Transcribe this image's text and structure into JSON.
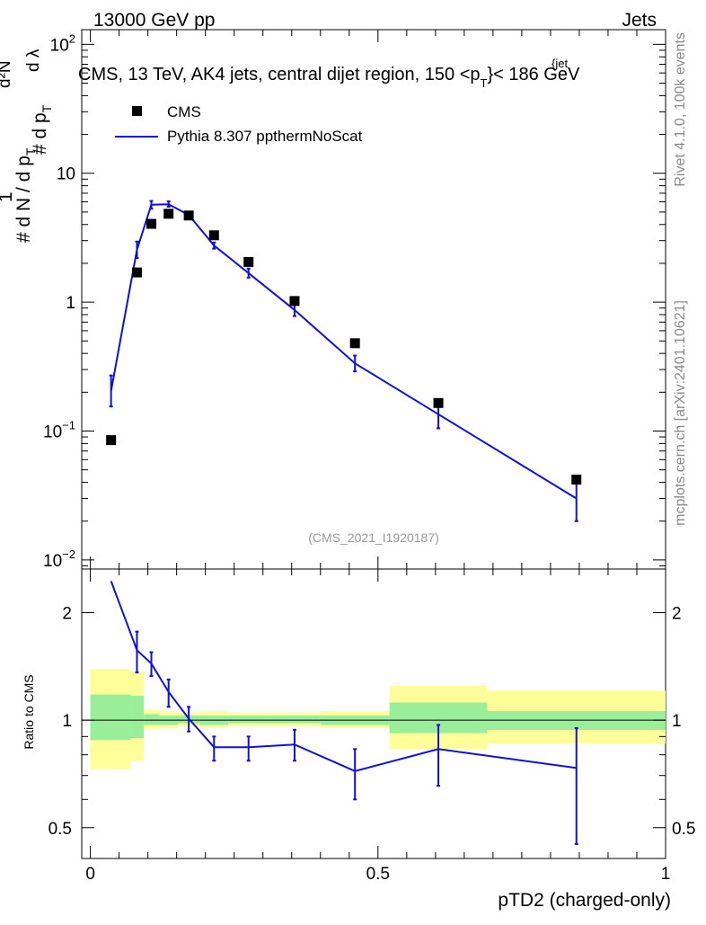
{
  "header": {
    "left": "13000 GeV pp",
    "right": "Jets"
  },
  "colors": {
    "data": "#000000",
    "mc": "#1010dd",
    "band_outer": "#ffff99",
    "band_inner": "#99ee99",
    "side_text": "#8a8a8a"
  },
  "side_labels": {
    "rivet": "Rivet 4.1.0,  100k events",
    "mcplots": "mcplots.cern.ch [arXiv:2401.10621]"
  },
  "chart_data": [
    {
      "type": "scatter",
      "title": "CMS, 13 TeV, AK4 jets, central dijet region, 150 <p",
      "title_sub": "T",
      "title_sup": "{jet",
      "title_tail": "}< 186 GeV",
      "analysis_id": "(CMS_2021_I1920187)",
      "ylabel_num": "1",
      "ylabel_mid": "# d N / d p",
      "ylabel_sub": "T",
      "ylabel_right": "# d p",
      "ylabel_right_sub": "T",
      "ylabel_top": "d²N",
      "ylabel_top2": "d λ",
      "yscale": "log",
      "ylim": [
        0.0085,
        130
      ],
      "xlim": [
        -0.015,
        1.0
      ],
      "yticks": [
        {
          "value": 0.01,
          "base": "10",
          "exp": "−2"
        },
        {
          "value": 0.1,
          "base": "10",
          "exp": "−1"
        },
        {
          "value": 1,
          "label": "1"
        },
        {
          "value": 10,
          "label": "10"
        },
        {
          "value": 100,
          "base": "10",
          "exp": "2"
        }
      ],
      "legend": [
        {
          "name": "CMS",
          "marker": "square"
        },
        {
          "name": "Pythia 8.307 ppthermNoScat",
          "marker": "line"
        }
      ],
      "series": [
        {
          "name": "CMS",
          "x": [
            0.036,
            0.081,
            0.106,
            0.136,
            0.171,
            0.215,
            0.275,
            0.355,
            0.46,
            0.605,
            0.845
          ],
          "y": [
            0.085,
            1.7,
            4.05,
            4.85,
            4.7,
            3.3,
            2.05,
            1.02,
            0.48,
            0.165,
            0.042
          ]
        },
        {
          "name": "Pythia 8.307 ppthermNoScat",
          "x": [
            0.036,
            0.081,
            0.106,
            0.136,
            0.171,
            0.215,
            0.275,
            0.355,
            0.46,
            0.605,
            0.845
          ],
          "y": [
            0.205,
            2.55,
            5.7,
            5.75,
            4.75,
            2.75,
            1.68,
            0.87,
            0.335,
            0.135,
            0.03
          ],
          "err_lo": [
            0.155,
            2.2,
            5.3,
            5.5,
            4.6,
            2.6,
            1.55,
            0.78,
            0.29,
            0.105,
            0.02
          ],
          "err_hi": [
            0.27,
            2.95,
            6.1,
            6.05,
            4.95,
            2.9,
            1.82,
            0.96,
            0.385,
            0.16,
            0.039
          ]
        }
      ]
    },
    {
      "type": "line",
      "ylabel": "Ratio to CMS",
      "xlabel": "pTD2 (charged-only)",
      "yscale": "log",
      "ylim": [
        0.41,
        2.65
      ],
      "xlim": [
        -0.015,
        1.0
      ],
      "xticks": [
        {
          "value": 0,
          "label": "0"
        },
        {
          "value": 0.5,
          "label": "0.5"
        },
        {
          "value": 1,
          "label": "1"
        }
      ],
      "yticks": [
        {
          "value": 0.5,
          "label": "0.5"
        },
        {
          "value": 1,
          "label": "1"
        },
        {
          "value": 2,
          "label": "2"
        }
      ],
      "reference_line": 1,
      "bands": [
        {
          "x0": 0.0,
          "x1": 0.07,
          "outer": [
            0.73,
            1.39
          ],
          "inner": [
            0.88,
            1.18
          ]
        },
        {
          "x0": 0.07,
          "x1": 0.093,
          "outer": [
            0.77,
            1.37
          ],
          "inner": [
            0.89,
            1.17
          ]
        },
        {
          "x0": 0.093,
          "x1": 0.12,
          "outer": [
            0.94,
            1.07
          ],
          "inner": [
            0.97,
            1.04
          ]
        },
        {
          "x0": 0.12,
          "x1": 0.153,
          "outer": [
            0.95,
            1.06
          ],
          "inner": [
            0.97,
            1.03
          ]
        },
        {
          "x0": 0.153,
          "x1": 0.19,
          "outer": [
            0.96,
            1.05
          ],
          "inner": [
            0.98,
            1.03
          ]
        },
        {
          "x0": 0.19,
          "x1": 0.24,
          "outer": [
            0.95,
            1.06
          ],
          "inner": [
            0.97,
            1.03
          ]
        },
        {
          "x0": 0.24,
          "x1": 0.31,
          "outer": [
            0.96,
            1.05
          ],
          "inner": [
            0.98,
            1.03
          ]
        },
        {
          "x0": 0.31,
          "x1": 0.4,
          "outer": [
            0.96,
            1.05
          ],
          "inner": [
            0.98,
            1.03
          ]
        },
        {
          "x0": 0.4,
          "x1": 0.52,
          "outer": [
            0.95,
            1.06
          ],
          "inner": [
            0.97,
            1.03
          ]
        },
        {
          "x0": 0.52,
          "x1": 0.69,
          "outer": [
            0.83,
            1.25
          ],
          "inner": [
            0.92,
            1.12
          ]
        },
        {
          "x0": 0.69,
          "x1": 1.0,
          "outer": [
            0.86,
            1.21
          ],
          "inner": [
            0.94,
            1.06
          ]
        }
      ],
      "series": [
        {
          "name": "Pythia 8.307 ppthermNoScat / CMS",
          "x": [
            0.036,
            0.081,
            0.106,
            0.136,
            0.171,
            0.215,
            0.275,
            0.355,
            0.46,
            0.605,
            0.845
          ],
          "y": [
            2.45,
            1.57,
            1.44,
            1.2,
            1.01,
            0.84,
            0.84,
            0.855,
            0.72,
            0.83,
            0.735
          ],
          "err_lo": [
            null,
            1.36,
            1.33,
            1.09,
            0.93,
            0.77,
            0.77,
            0.77,
            0.6,
            0.655,
            0.45
          ],
          "err_hi": [
            null,
            1.77,
            1.55,
            1.3,
            1.09,
            0.9,
            0.9,
            0.94,
            0.83,
            0.97,
            0.95
          ]
        }
      ]
    }
  ]
}
